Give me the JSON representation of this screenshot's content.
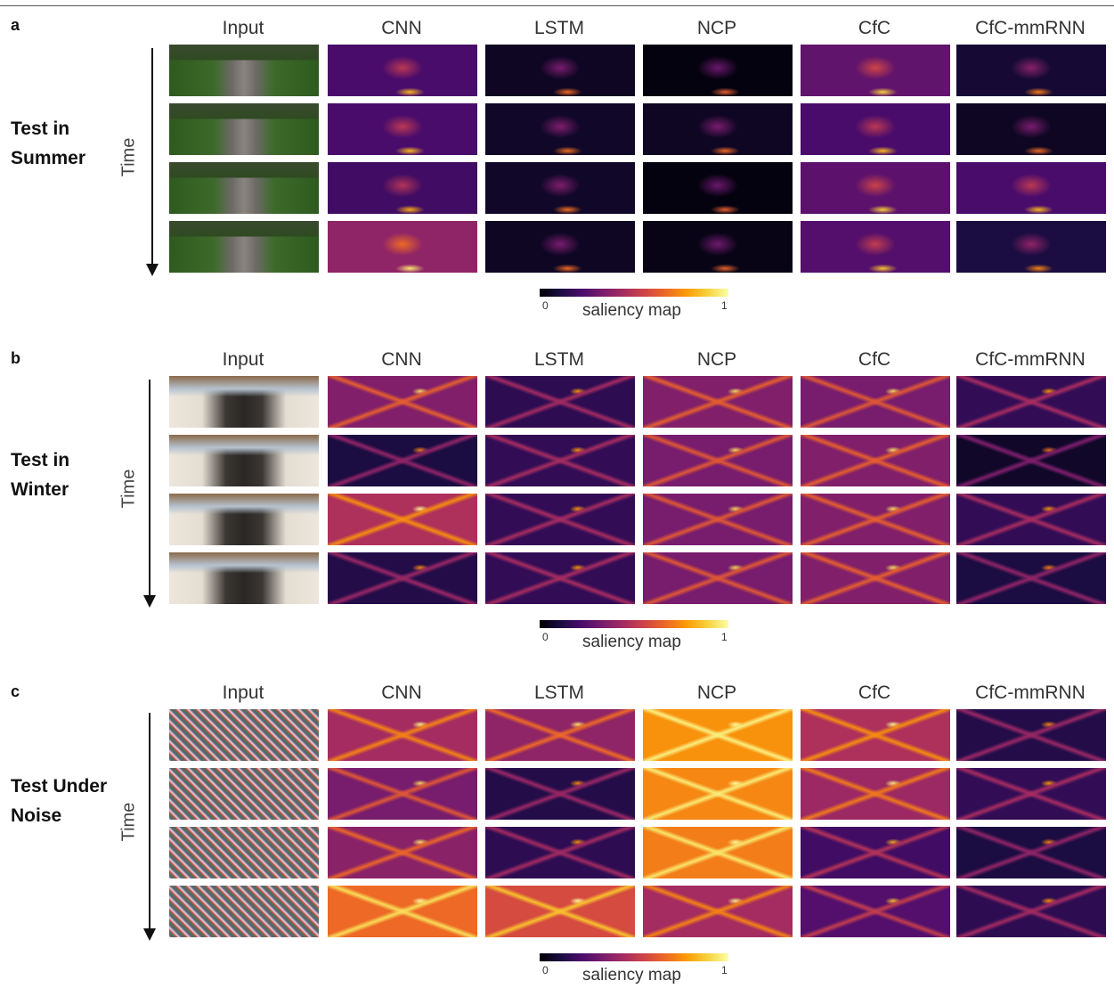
{
  "columns": [
    "Input",
    "CNN",
    "LSTM",
    "NCP",
    "CfC",
    "CfC-mmRNN"
  ],
  "time_label": "Time",
  "colorbar": {
    "min": "0",
    "max": "1",
    "label": "saliency map"
  },
  "panels": [
    {
      "letter": "a",
      "title": "Test in\nSummer",
      "scene": "summer",
      "maps": [
        [
          0.2,
          0.05,
          0.02,
          0.25,
          0.08
        ],
        [
          0.2,
          0.06,
          0.05,
          0.2,
          0.05
        ],
        [
          0.18,
          0.06,
          0.02,
          0.24,
          0.2
        ],
        [
          0.35,
          0.05,
          0.03,
          0.22,
          0.1
        ]
      ]
    },
    {
      "letter": "b",
      "title": "Test in\nWinter",
      "scene": "winter",
      "maps": [
        [
          0.32,
          0.14,
          0.32,
          0.3,
          0.15
        ],
        [
          0.1,
          0.15,
          0.3,
          0.32,
          0.06
        ],
        [
          0.42,
          0.15,
          0.3,
          0.32,
          0.15
        ],
        [
          0.12,
          0.15,
          0.3,
          0.32,
          0.1
        ]
      ]
    },
    {
      "letter": "c",
      "title": "Test Under\nNoise",
      "scene": "noise",
      "maps": [
        [
          0.4,
          0.35,
          0.68,
          0.42,
          0.12
        ],
        [
          0.3,
          0.12,
          0.66,
          0.38,
          0.15
        ],
        [
          0.34,
          0.14,
          0.64,
          0.18,
          0.1
        ],
        [
          0.6,
          0.52,
          0.4,
          0.22,
          0.14
        ]
      ]
    }
  ]
}
